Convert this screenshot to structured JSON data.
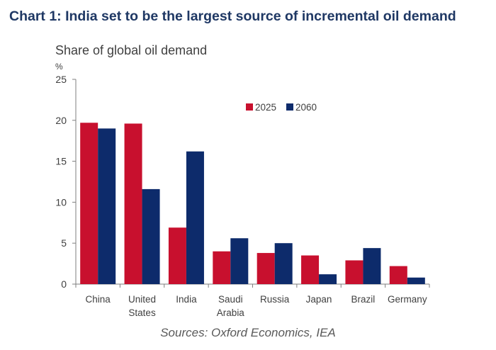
{
  "title": "Chart 1: India set to be the largest source of incremental oil demand",
  "source": "Sources: Oxford Economics, IEA",
  "colors": {
    "series_2025": "#c8102e",
    "series_2060": "#0d2b6b",
    "title": "#1f3864",
    "axis": "#7f7f7f",
    "text": "#404040"
  },
  "chart_data": {
    "type": "bar",
    "subtitle": "Share of global oil demand",
    "ylabel": "%",
    "xlabel": "",
    "ylim": [
      0,
      25
    ],
    "yticks": [
      0,
      5,
      10,
      15,
      20,
      25
    ],
    "grid": false,
    "legend": "top-right",
    "categories": [
      [
        "China"
      ],
      [
        "United",
        "States"
      ],
      [
        "India"
      ],
      [
        "Saudi",
        "Arabia"
      ],
      [
        "Russia"
      ],
      [
        "Japan"
      ],
      [
        "Brazil"
      ],
      [
        "Germany"
      ]
    ],
    "series": [
      {
        "name": "2025",
        "values": [
          19.7,
          19.6,
          6.9,
          4.0,
          3.8,
          3.5,
          2.9,
          2.2
        ]
      },
      {
        "name": "2060",
        "values": [
          19.0,
          11.6,
          16.2,
          5.6,
          5.0,
          1.2,
          4.4,
          0.8
        ]
      }
    ]
  }
}
